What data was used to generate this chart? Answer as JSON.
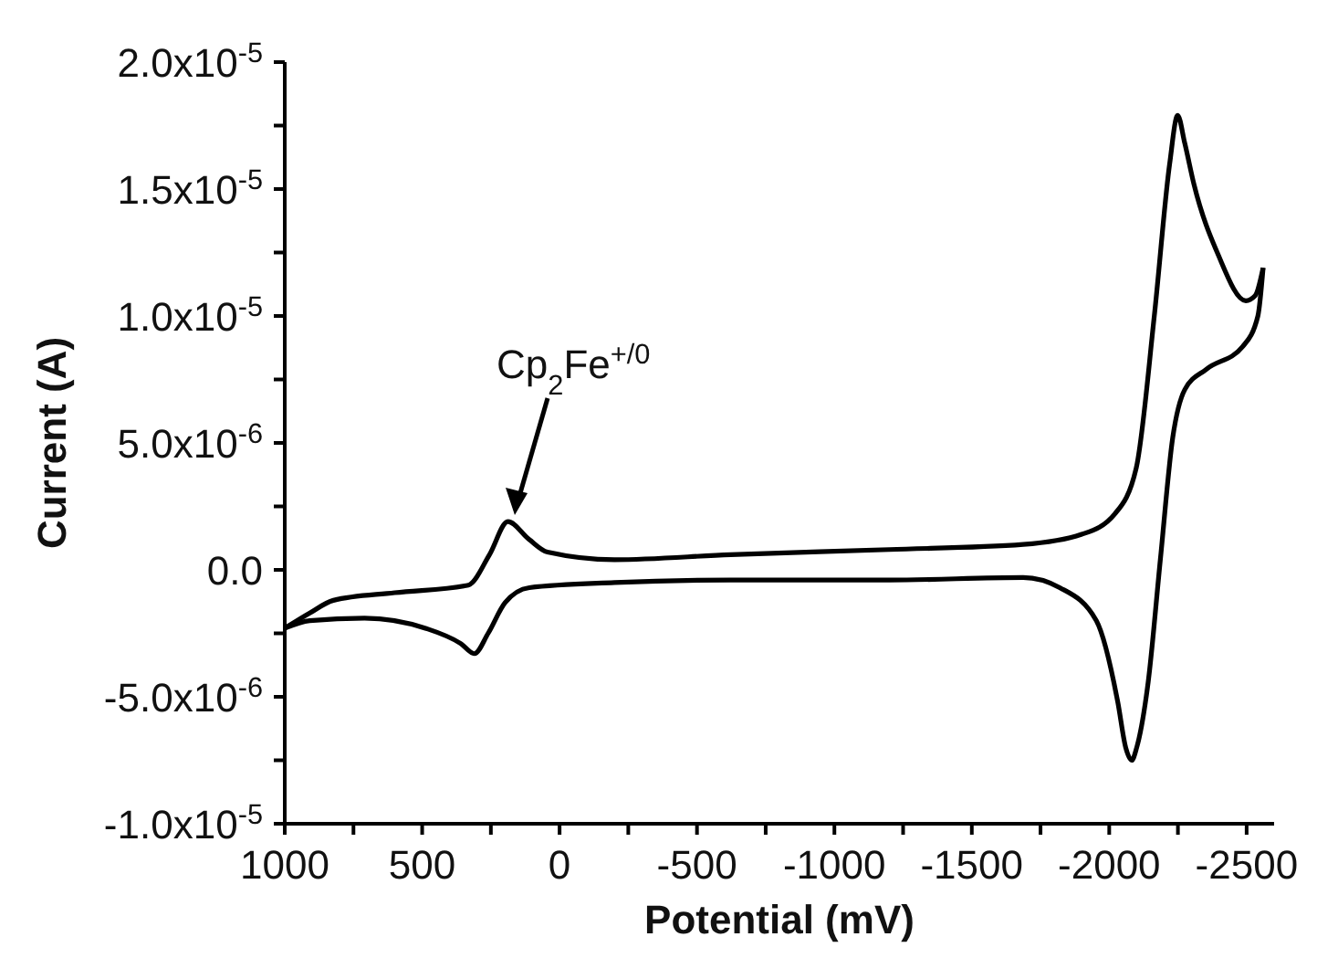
{
  "chart_data": {
    "type": "line",
    "xlabel": "Potential (mV)",
    "ylabel": "Current (A)",
    "series": [
      {
        "color": "#000000",
        "x": [
          1000,
          909,
          823,
          600,
          332,
          255,
          188,
          111,
          44,
          -200,
          -622,
          -1200,
          -1687,
          -1900,
          -2020,
          -2098,
          -2164,
          -2220,
          -2249,
          -2275,
          -2308,
          -2397,
          -2497,
          -2531,
          -2560
        ],
        "values": [
          -2.3e-06,
          -1.7e-06,
          -1.2e-06,
          -9e-07,
          -6e-07,
          6e-07,
          1.9e-06,
          1.2e-06,
          7e-07,
          4e-07,
          6e-07,
          8e-07,
          1e-06,
          1.4e-06,
          2.2e-06,
          4e-06,
          1e-05,
          1.6e-05,
          1.79e-05,
          1.68e-05,
          1.52e-05,
          1.24e-05,
          1.06e-05,
          1.08e-05,
          1.19e-05
        ]
      },
      {
        "color": "#000000",
        "x": [
          -2560,
          -2541,
          -2486,
          -2353,
          -2275,
          -2231,
          -2186,
          -2142,
          -2100,
          -2082,
          -2060,
          -2031,
          -1953,
          -1820,
          -1687,
          -1200,
          -622,
          -200,
          110,
          199,
          260,
          310,
          360,
          488,
          710,
          909,
          1000
        ],
        "values": [
          1.19e-05,
          1e-05,
          8.8e-06,
          7.9e-06,
          7.1e-06,
          5.2e-06,
          4e-07,
          -4.4e-06,
          -7e-06,
          -7.5e-06,
          -7e-06,
          -5.2e-06,
          -2e-06,
          -7e-07,
          -3e-07,
          -4e-07,
          -4e-07,
          -5e-07,
          -7e-07,
          -1.3e-06,
          -2.5e-06,
          -3.3e-06,
          -2.9e-06,
          -2.3e-06,
          -1.9e-06,
          -2e-06,
          -2.3e-06
        ]
      }
    ],
    "xlim": [
      1000,
      -2600
    ],
    "xticks": [
      1000,
      {
        "value": 750,
        "label": null
      },
      500,
      {
        "value": 250,
        "label": null
      },
      0,
      {
        "value": -250,
        "label": null
      },
      -500,
      {
        "value": -750,
        "label": null
      },
      -1000,
      {
        "value": -1250,
        "label": null
      },
      -1500,
      {
        "value": -1750,
        "label": null
      },
      -2000,
      {
        "value": -2250,
        "label": null
      },
      -2500
    ],
    "ylim": [
      -1e-05,
      2e-05
    ],
    "yticks": [
      {
        "value": -1e-05,
        "label": "-1.0x10$^{-5}$"
      },
      {
        "value": -7.5e-06,
        "label": null
      },
      {
        "value": -5e-06,
        "label": "-5.0x10$^{-6}$"
      },
      {
        "value": -2.5e-06,
        "label": null
      },
      {
        "value": 0,
        "label": "0.0"
      },
      {
        "value": 2.5e-06,
        "label": null
      },
      {
        "value": 5e-06,
        "label": "5.0x10$^{-6}$"
      },
      {
        "value": 7.5e-06,
        "label": null
      },
      {
        "value": 1e-05,
        "label": "1.0x10$^{-5}$"
      },
      {
        "value": 1.25e-05,
        "label": null
      },
      {
        "value": 1.5e-05,
        "label": "1.5x10$^{-5}$"
      },
      {
        "value": 1.75e-05,
        "label": null
      },
      {
        "value": 2e-05,
        "label": "2.0x10$^{-5}$"
      }
    ],
    "annotations": [
      "Cp$_{2}$Fe$^{+/0}$"
    ],
    "grid": false,
    "legend": false,
    "marker": "none",
    "line_style": "solid"
  }
}
